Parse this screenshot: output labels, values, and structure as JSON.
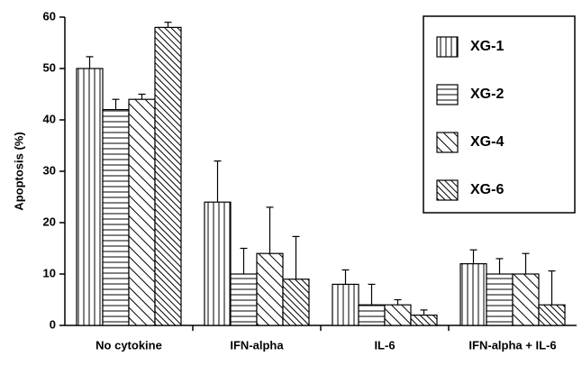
{
  "chart_data": {
    "type": "bar",
    "y_label": "Apoptosis (%)",
    "categories": [
      "No cytokine",
      "IFN-alpha",
      "IL-6",
      "IFN-alpha + IL-6"
    ],
    "ylim": [
      0,
      60
    ],
    "yticks": [
      0,
      10,
      20,
      30,
      40,
      50,
      60
    ],
    "legend": "upper right",
    "series": [
      {
        "name": "XG-1",
        "color": "#000000",
        "hatch": "vertical",
        "values": [
          50,
          24,
          8,
          12
        ],
        "errors": [
          2.3,
          8,
          2.8,
          2.7
        ]
      },
      {
        "name": "XG-2",
        "color": "#000000",
        "hatch": "horizontal",
        "values": [
          42,
          10,
          4,
          10
        ],
        "errors": [
          2,
          5,
          4,
          3
        ]
      },
      {
        "name": "XG-4",
        "color": "#000000",
        "hatch": "diagonal",
        "values": [
          44,
          14,
          4,
          10
        ],
        "errors": [
          1,
          9,
          1,
          4
        ]
      },
      {
        "name": "XG-6",
        "color": "#000000",
        "hatch": "diagonal-dense",
        "values": [
          58,
          9,
          2,
          4
        ],
        "errors": [
          1,
          8.3,
          1,
          6.6
        ]
      }
    ]
  }
}
